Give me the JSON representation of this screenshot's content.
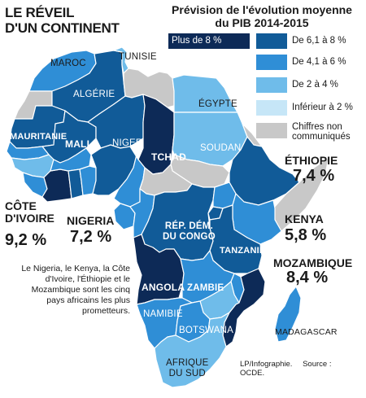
{
  "title": "LE RÉVEIL\nD'UN CONTINENT",
  "legend": {
    "title": "Prévision de l'évolution moyenne\ndu PIB 2014-2015",
    "items": [
      {
        "label": "Plus de 8 %",
        "color": "#0d2a57"
      },
      {
        "label": "De 6,1 à 8 %",
        "color": "#115b98"
      },
      {
        "label": "De 4,1 à 6 %",
        "color": "#2f8ed6"
      },
      {
        "label": "De 2 à 4 %",
        "color": "#6fbcea"
      },
      {
        "label": "Inférieur à 2 %",
        "color": "#c6e6f7"
      },
      {
        "label": "Chiffres non\ncommuniqués",
        "color": "#c8c8c8"
      }
    ]
  },
  "countries": {
    "maroc": "MAROC",
    "tunisie": "TUNISIE",
    "algerie": "ALGÉRIE",
    "egypte": "ÉGYPTE",
    "mauritanie": "MAURITANIE",
    "mali": "MALI",
    "niger": "NIGER",
    "tchad": "TCHAD",
    "soudan": "SOUDAN",
    "rdc": "RÉP. DÉM.\nDU CONGO",
    "tanzanie": "TANZANIE",
    "angola": "ANGOLA",
    "zambie": "ZAMBIE",
    "namibie": "NAMIBIE",
    "botswana": "BOTSWANA",
    "afrique_du_sud": "AFRIQUE\nDU SUD",
    "madagascar": "MADAGASCAR"
  },
  "callouts": {
    "ethiopie": {
      "name": "ÉTHIOPIE",
      "value": "7,4 %"
    },
    "cote_divoire": {
      "name": "CÔTE\nD'IVOIRE",
      "value": "9,2 %"
    },
    "nigeria": {
      "name": "NIGERIA",
      "value": "7,2 %"
    },
    "kenya": {
      "name": "KENYA",
      "value": "5,8 %"
    },
    "mozambique": {
      "name": "MOZAMBIQUE",
      "value": "8,4 %"
    }
  },
  "note": "Le Nigeria, le Kenya, la Côte d'Ivoire, l'Éthiopie et le Mozambique sont les cinq pays africains les plus prometteurs.",
  "credit": "LP/Infographie.",
  "source": "Source : OCDE."
}
